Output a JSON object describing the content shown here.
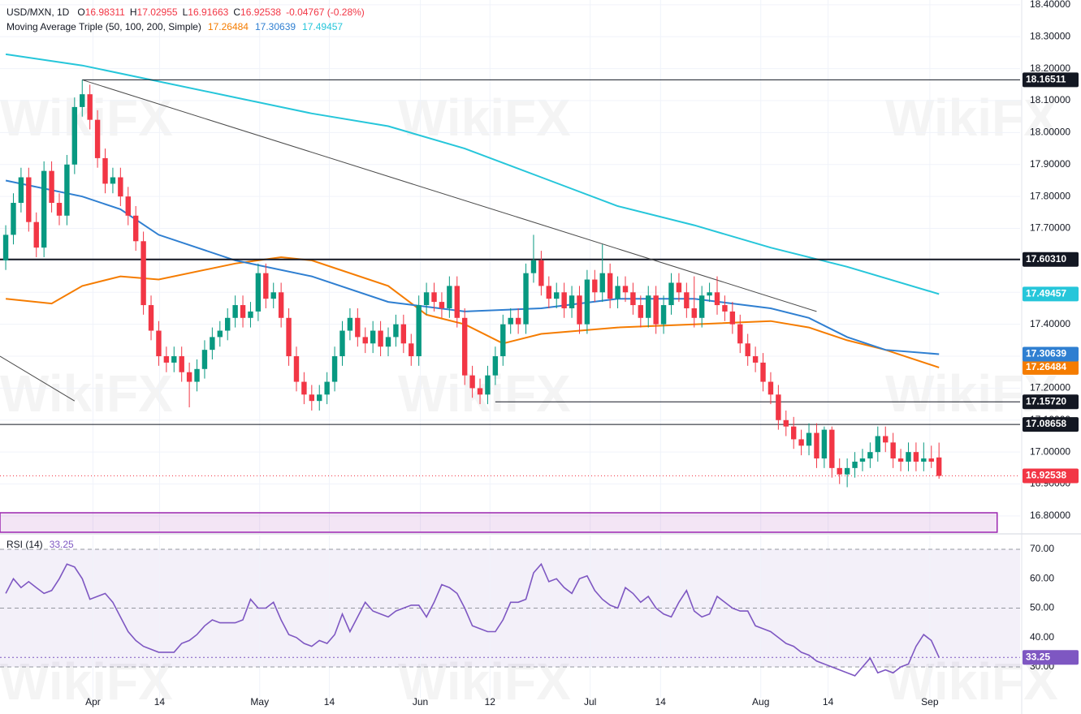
{
  "chart_data": [
    {
      "type": "candlestick",
      "title": "USD/MXN, 1D",
      "ohlc_legend": [
        {
          "label": "O",
          "value": "16.98311"
        },
        {
          "label": "H",
          "value": "17.02955"
        },
        {
          "label": "L",
          "value": "16.91663"
        },
        {
          "label": "C",
          "value": "16.92538"
        }
      ],
      "change": "-0.04767 (-0.28%)",
      "colors": {
        "up": "#089981",
        "down": "#f23645"
      },
      "ohlc": [
        [
          17.6,
          17.71,
          17.57,
          17.68
        ],
        [
          17.68,
          17.81,
          17.65,
          17.78
        ],
        [
          17.78,
          17.89,
          17.75,
          17.86
        ],
        [
          17.86,
          17.89,
          17.69,
          17.72
        ],
        [
          17.72,
          17.75,
          17.61,
          17.64
        ],
        [
          17.64,
          17.91,
          17.61,
          17.88
        ],
        [
          17.88,
          17.91,
          17.75,
          17.78
        ],
        [
          17.78,
          17.81,
          17.71,
          17.74
        ],
        [
          17.74,
          17.93,
          17.71,
          17.9
        ],
        [
          17.9,
          18.11,
          17.87,
          18.08
        ],
        [
          18.08,
          18.165,
          18.05,
          18.12
        ],
        [
          18.12,
          18.15,
          18.01,
          18.04
        ],
        [
          18.04,
          18.07,
          17.89,
          17.92
        ],
        [
          17.92,
          17.95,
          17.81,
          17.84
        ],
        [
          17.84,
          17.89,
          17.81,
          17.86
        ],
        [
          17.86,
          17.89,
          17.77,
          17.8
        ],
        [
          17.8,
          17.83,
          17.71,
          17.74
        ],
        [
          17.74,
          17.77,
          17.63,
          17.66
        ],
        [
          17.66,
          17.69,
          17.43,
          17.46
        ],
        [
          17.46,
          17.49,
          17.35,
          17.38
        ],
        [
          17.38,
          17.41,
          17.27,
          17.3
        ],
        [
          17.3,
          17.33,
          17.25,
          17.28
        ],
        [
          17.28,
          17.33,
          17.25,
          17.3
        ],
        [
          17.3,
          17.33,
          17.22,
          17.25
        ],
        [
          17.25,
          17.28,
          17.14,
          17.22
        ],
        [
          17.22,
          17.29,
          17.19,
          17.26
        ],
        [
          17.26,
          17.35,
          17.23,
          17.32
        ],
        [
          17.32,
          17.39,
          17.29,
          17.36
        ],
        [
          17.36,
          17.41,
          17.33,
          17.38
        ],
        [
          17.38,
          17.45,
          17.35,
          17.42
        ],
        [
          17.42,
          17.49,
          17.39,
          17.46
        ],
        [
          17.46,
          17.49,
          17.39,
          17.42
        ],
        [
          17.42,
          17.47,
          17.39,
          17.44
        ],
        [
          17.44,
          17.59,
          17.41,
          17.56
        ],
        [
          17.56,
          17.59,
          17.45,
          17.48
        ],
        [
          17.48,
          17.53,
          17.45,
          17.5
        ],
        [
          17.5,
          17.53,
          17.39,
          17.42
        ],
        [
          17.42,
          17.45,
          17.27,
          17.3
        ],
        [
          17.3,
          17.33,
          17.19,
          17.22
        ],
        [
          17.22,
          17.25,
          17.15,
          17.18
        ],
        [
          17.18,
          17.21,
          17.13,
          17.16
        ],
        [
          17.16,
          17.21,
          17.13,
          17.18
        ],
        [
          17.18,
          17.25,
          17.15,
          17.22
        ],
        [
          17.22,
          17.33,
          17.19,
          17.3
        ],
        [
          17.3,
          17.41,
          17.27,
          17.38
        ],
        [
          17.38,
          17.45,
          17.35,
          17.42
        ],
        [
          17.42,
          17.45,
          17.33,
          17.36
        ],
        [
          17.36,
          17.39,
          17.31,
          17.34
        ],
        [
          17.34,
          17.41,
          17.31,
          17.38
        ],
        [
          17.38,
          17.41,
          17.3,
          17.33
        ],
        [
          17.33,
          17.39,
          17.3,
          17.36
        ],
        [
          17.36,
          17.43,
          17.33,
          17.4
        ],
        [
          17.4,
          17.43,
          17.31,
          17.34
        ],
        [
          17.34,
          17.37,
          17.27,
          17.3
        ],
        [
          17.3,
          17.49,
          17.27,
          17.46
        ],
        [
          17.46,
          17.53,
          17.43,
          17.5
        ],
        [
          17.5,
          17.53,
          17.44,
          17.47
        ],
        [
          17.47,
          17.5,
          17.42,
          17.45
        ],
        [
          17.45,
          17.55,
          17.42,
          17.52
        ],
        [
          17.52,
          17.55,
          17.39,
          17.42
        ],
        [
          17.42,
          17.45,
          17.21,
          17.24
        ],
        [
          17.24,
          17.27,
          17.17,
          17.2
        ],
        [
          17.2,
          17.23,
          17.15,
          17.18
        ],
        [
          17.18,
          17.27,
          17.15,
          17.24
        ],
        [
          17.24,
          17.33,
          17.21,
          17.3
        ],
        [
          17.3,
          17.43,
          17.27,
          17.4
        ],
        [
          17.4,
          17.45,
          17.37,
          17.42
        ],
        [
          17.42,
          17.45,
          17.37,
          17.4
        ],
        [
          17.4,
          17.59,
          17.37,
          17.56
        ],
        [
          17.56,
          17.68,
          17.53,
          17.6
        ],
        [
          17.6,
          17.63,
          17.49,
          17.52
        ],
        [
          17.52,
          17.55,
          17.45,
          17.48
        ],
        [
          17.48,
          17.53,
          17.45,
          17.5
        ],
        [
          17.5,
          17.53,
          17.42,
          17.45
        ],
        [
          17.45,
          17.52,
          17.42,
          17.49
        ],
        [
          17.49,
          17.52,
          17.37,
          17.4
        ],
        [
          17.4,
          17.57,
          17.37,
          17.54
        ],
        [
          17.54,
          17.57,
          17.47,
          17.5
        ],
        [
          17.5,
          17.65,
          17.47,
          17.56
        ],
        [
          17.56,
          17.59,
          17.45,
          17.48
        ],
        [
          17.48,
          17.55,
          17.45,
          17.52
        ],
        [
          17.52,
          17.55,
          17.47,
          17.5
        ],
        [
          17.5,
          17.53,
          17.43,
          17.46
        ],
        [
          17.46,
          17.49,
          17.39,
          17.42
        ],
        [
          17.42,
          17.52,
          17.39,
          17.49
        ],
        [
          17.49,
          17.52,
          17.37,
          17.4
        ],
        [
          17.4,
          17.49,
          17.37,
          17.46
        ],
        [
          17.46,
          17.56,
          17.43,
          17.53
        ],
        [
          17.53,
          17.56,
          17.47,
          17.5
        ],
        [
          17.5,
          17.53,
          17.42,
          17.45
        ],
        [
          17.45,
          17.55,
          17.39,
          17.42
        ],
        [
          17.42,
          17.52,
          17.39,
          17.49
        ],
        [
          17.49,
          17.53,
          17.47,
          17.5
        ],
        [
          17.5,
          17.55,
          17.43,
          17.46
        ],
        [
          17.46,
          17.49,
          17.41,
          17.44
        ],
        [
          17.44,
          17.47,
          17.37,
          17.4
        ],
        [
          17.4,
          17.43,
          17.31,
          17.34
        ],
        [
          17.34,
          17.37,
          17.27,
          17.3
        ],
        [
          17.3,
          17.33,
          17.25,
          17.28
        ],
        [
          17.28,
          17.31,
          17.19,
          17.22
        ],
        [
          17.22,
          17.25,
          17.15,
          17.18
        ],
        [
          17.18,
          17.21,
          17.07,
          17.1
        ],
        [
          17.1,
          17.13,
          17.05,
          17.08
        ],
        [
          17.08,
          17.11,
          17.01,
          17.04
        ],
        [
          17.04,
          17.07,
          16.99,
          17.02
        ],
        [
          17.02,
          17.09,
          16.99,
          17.06
        ],
        [
          17.06,
          17.09,
          16.95,
          16.98
        ],
        [
          16.98,
          17.08,
          16.95,
          17.07
        ],
        [
          17.07,
          17.08,
          16.92,
          16.95
        ],
        [
          16.95,
          16.98,
          16.9,
          16.93
        ],
        [
          16.93,
          16.98,
          16.89,
          16.95
        ],
        [
          16.95,
          17.0,
          16.92,
          16.97
        ],
        [
          16.97,
          17.01,
          16.94,
          16.98
        ],
        [
          16.98,
          17.03,
          16.95,
          17.0
        ],
        [
          17.0,
          17.08,
          16.97,
          17.05
        ],
        [
          17.05,
          17.08,
          17.0,
          17.03
        ],
        [
          17.03,
          17.06,
          16.95,
          16.98
        ],
        [
          16.98,
          17.01,
          16.94,
          16.97
        ],
        [
          16.97,
          17.03,
          16.94,
          17.0
        ],
        [
          17.0,
          17.03,
          16.94,
          16.97
        ],
        [
          16.97,
          17.03,
          16.94,
          16.98
        ],
        [
          16.98,
          17.02,
          16.95,
          16.97
        ],
        [
          16.98311,
          17.02955,
          16.91663,
          16.92538
        ]
      ],
      "xlim": [
        -0.75,
        132.6
      ],
      "ylim": [
        16.749,
        18.415
      ],
      "yticks": [
        {
          "value": 16.8,
          "label": "16.80000"
        },
        {
          "value": 16.9,
          "label": "16.90000"
        },
        {
          "value": 17.0,
          "label": "17.00000"
        },
        {
          "value": 17.1,
          "label": "17.10000"
        },
        {
          "value": 17.2,
          "label": "17.20000"
        },
        {
          "value": 17.3,
          "label": "17.30000"
        },
        {
          "value": 17.4,
          "label": "17.40000"
        },
        {
          "value": 17.5,
          "label": "17.50000"
        },
        {
          "value": 17.6,
          "label": "17.60000"
        },
        {
          "value": 17.7,
          "label": "17.70000"
        },
        {
          "value": 17.8,
          "label": "17.80000"
        },
        {
          "value": 17.9,
          "label": "17.90000"
        },
        {
          "value": 18.0,
          "label": "18.00000"
        },
        {
          "value": 18.1,
          "label": "18.10000"
        },
        {
          "value": 18.2,
          "label": "18.20000"
        },
        {
          "value": 18.3,
          "label": "18.30000"
        },
        {
          "value": 18.4,
          "label": "18.40000"
        }
      ],
      "grid": true,
      "moving_averages": {
        "title": "Moving Average Triple (50, 100, 200, Simple)",
        "lines": [
          {
            "label": "17.26484",
            "color": "#f57c00",
            "x": [
              0,
              6,
              10,
              15,
              20,
              30,
              36,
              40,
              50,
              55,
              60,
              65,
              70,
              80,
              90,
              100,
              105,
              110,
              115,
              122
            ],
            "values": [
              17.48,
              17.465,
              17.52,
              17.55,
              17.54,
              17.59,
              17.61,
              17.6,
              17.52,
              17.43,
              17.4,
              17.34,
              17.37,
              17.39,
              17.4,
              17.41,
              17.39,
              17.35,
              17.32,
              17.26484
            ]
          },
          {
            "label": "17.30639",
            "color": "#2f7fd1",
            "x": [
              0,
              10,
              15,
              20,
              30,
              40,
              50,
              60,
              70,
              80,
              90,
              100,
              105,
              110,
              115,
              122
            ],
            "values": [
              17.85,
              17.8,
              17.76,
              17.68,
              17.6,
              17.55,
              17.47,
              17.44,
              17.45,
              17.48,
              17.48,
              17.45,
              17.42,
              17.36,
              17.32,
              17.30639
            ]
          },
          {
            "label": "17.49457",
            "color": "#26c6da",
            "x": [
              0,
              10,
              20,
              30,
              40,
              50,
              60,
              70,
              80,
              90,
              100,
              110,
              122
            ],
            "values": [
              18.245,
              18.21,
              18.16,
              18.11,
              18.06,
              18.02,
              17.95,
              17.86,
              17.77,
              17.71,
              17.64,
              17.58,
              17.49457
            ]
          }
        ]
      },
      "levels": [
        {
          "value": 18.16511,
          "label": "18.16511",
          "x_start": 10,
          "bold": false
        },
        {
          "value": 17.6031,
          "label": "17.60310",
          "x_start": -0.75,
          "bold": true
        },
        {
          "value": 17.1572,
          "label": "17.15720",
          "x_start": 64,
          "bold": false
        },
        {
          "value": 17.08658,
          "label": "17.08658",
          "x_start": -0.75,
          "bold": false
        }
      ],
      "trendlines": [
        {
          "x": [
            10,
            106
          ],
          "y": [
            18.165,
            17.44
          ]
        },
        {
          "x": [
            -0.75,
            9
          ],
          "y": [
            17.3,
            17.16
          ]
        }
      ],
      "zone": {
        "from": 16.7,
        "to": 16.81,
        "x_start": -0.75,
        "x_end": 129.6,
        "color": "#9c27b0"
      },
      "last_price": {
        "value": 16.92538,
        "label": "16.92538"
      },
      "watermark": "WikiFX"
    },
    {
      "type": "line",
      "title": "RSI (14)",
      "last_label": "33.25",
      "color": "#7e57c2",
      "values": [
        55,
        60,
        57,
        59,
        57,
        55,
        56,
        60,
        65,
        64,
        60,
        53,
        54,
        55,
        52,
        47,
        42,
        39,
        37,
        36,
        35,
        35,
        35,
        38,
        39,
        41,
        44,
        46,
        45,
        45,
        45,
        46,
        53,
        50,
        50,
        52,
        46,
        41,
        40,
        38,
        37,
        39,
        38,
        41,
        48,
        42,
        47,
        52,
        49,
        48,
        47,
        49,
        50,
        51,
        51,
        47,
        52,
        58,
        57,
        55,
        50,
        44,
        43,
        42,
        42,
        46,
        52,
        52,
        53,
        62,
        65,
        59,
        60,
        57,
        55,
        60,
        61,
        56,
        53,
        51,
        50,
        57,
        55,
        52,
        54,
        50,
        48,
        47,
        52,
        56,
        49,
        47,
        48,
        54,
        52,
        50,
        49,
        49,
        44,
        43,
        42,
        40,
        38,
        37,
        35,
        34,
        32,
        31,
        30,
        29,
        28,
        27,
        30,
        33,
        28,
        29,
        28,
        30,
        31,
        37,
        41,
        39,
        33.25
      ],
      "xlim": [
        -0.75,
        132.6
      ],
      "ylim": [
        14,
        74.7
      ],
      "yticks": [
        {
          "value": 30,
          "label": "30.00"
        },
        {
          "value": 40,
          "label": "40.00"
        },
        {
          "value": 50,
          "label": "50.00"
        },
        {
          "value": 60,
          "label": "60.00"
        },
        {
          "value": 70,
          "label": "70.00"
        }
      ],
      "bands": {
        "upper": 70,
        "middle": 50,
        "lower": 30
      },
      "xticks": [
        {
          "value": 11.4,
          "label": "Apr"
        },
        {
          "value": 20.1,
          "label": "14"
        },
        {
          "value": 33.2,
          "label": "May"
        },
        {
          "value": 42.3,
          "label": "14"
        },
        {
          "value": 54.2,
          "label": "Jun"
        },
        {
          "value": 63.3,
          "label": "12"
        },
        {
          "value": 76.4,
          "label": "Jul"
        },
        {
          "value": 85.6,
          "label": "14"
        },
        {
          "value": 98.7,
          "label": "Aug"
        },
        {
          "value": 107.5,
          "label": "14"
        },
        {
          "value": 120.8,
          "label": "Sep"
        }
      ]
    }
  ]
}
